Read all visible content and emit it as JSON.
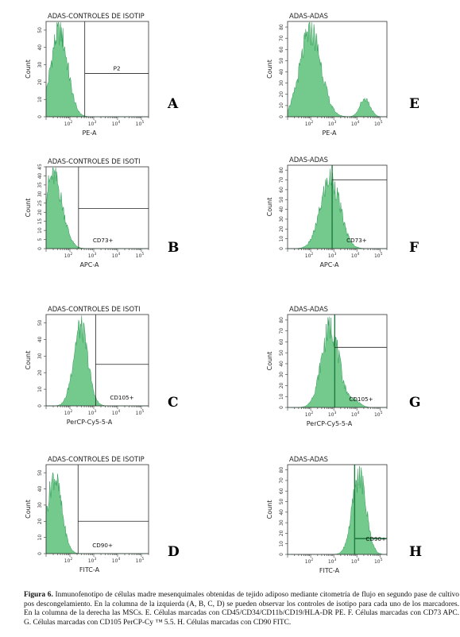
{
  "chart_data": [
    {
      "id": "A",
      "type": "area",
      "letter": "A",
      "title": "ADAS-CONTROLES DE ISOTIP",
      "xlabel": "PE-A",
      "ylabel": "Count",
      "xscale": "log",
      "xlim": [
        10,
        200000
      ],
      "ylim": [
        0,
        55
      ],
      "yticks": [
        0,
        10,
        20,
        30,
        40,
        50
      ],
      "gate": {
        "label": "P2",
        "x_from": 420,
        "level": 25
      },
      "series": [
        {
          "peak_log10": 1.55,
          "sigma": 0.35,
          "height": 52
        }
      ]
    },
    {
      "id": "B",
      "type": "area",
      "letter": "B",
      "title": "ADAS-CONTROLES DE ISOTI",
      "xlabel": "APC-A",
      "ylabel": "Count",
      "xscale": "log",
      "xlim": [
        10,
        200000
      ],
      "ylim": [
        0,
        45
      ],
      "yticks": [
        0,
        5,
        10,
        15,
        20,
        25,
        30,
        35,
        40,
        45
      ],
      "gate": {
        "label": "CD73+",
        "x_from": 230,
        "level": 22
      },
      "series": [
        {
          "peak_log10": 1.3,
          "sigma": 0.38,
          "height": 42
        }
      ]
    },
    {
      "id": "C",
      "type": "area",
      "letter": "C",
      "title": "ADAS-CONTROLES DE ISOTI",
      "xlabel": "PerCP-Cy5-5-A",
      "ylabel": "Count",
      "xscale": "log",
      "xlim": [
        10,
        200000
      ],
      "ylim": [
        0,
        55
      ],
      "yticks": [
        0,
        10,
        20,
        30,
        40,
        50
      ],
      "gate": {
        "label": "CD105+",
        "x_from": 1200,
        "level": 25
      },
      "series": [
        {
          "peak_log10": 2.45,
          "sigma": 0.3,
          "height": 50
        }
      ]
    },
    {
      "id": "D",
      "type": "area",
      "letter": "D",
      "title": "ADAS-CONTROLES DE ISOTIP",
      "xlabel": "FITC-A",
      "ylabel": "Count",
      "xscale": "log",
      "xlim": [
        10,
        200000
      ],
      "ylim": [
        0,
        55
      ],
      "yticks": [
        0,
        10,
        20,
        30,
        40,
        50
      ],
      "gate": {
        "label": "CD90+",
        "x_from": 220,
        "level": 20
      },
      "series": [
        {
          "peak_log10": 1.35,
          "sigma": 0.3,
          "height": 50
        }
      ]
    },
    {
      "id": "E",
      "type": "area",
      "letter": "E",
      "title": "ADAS-ADAS",
      "xlabel": "PE-A",
      "ylabel": "Count",
      "xscale": "log",
      "xlim": [
        10,
        200000
      ],
      "ylim": [
        0,
        85
      ],
      "yticks": [
        0,
        10,
        20,
        30,
        40,
        50,
        60,
        70,
        80
      ],
      "gate": null,
      "series": [
        {
          "peak_log10": 2.0,
          "sigma": 0.45,
          "height": 80
        },
        {
          "peak_log10": 4.35,
          "sigma": 0.22,
          "height": 17
        }
      ]
    },
    {
      "id": "F",
      "type": "area",
      "letter": "F",
      "title": "ADAS-ADAS",
      "xlabel": "APC-A",
      "ylabel": "Count",
      "xscale": "log",
      "xlim": [
        10,
        200000
      ],
      "ylim": [
        0,
        85
      ],
      "yticks": [
        0,
        10,
        20,
        30,
        40,
        50,
        60,
        70,
        80
      ],
      "gate": {
        "label": "CD73+",
        "x_from": 850,
        "level": 70
      },
      "series": [
        {
          "peak_log10": 2.85,
          "sigma": 0.42,
          "height": 75
        }
      ]
    },
    {
      "id": "G",
      "type": "area",
      "letter": "G",
      "title": "ADAS-ADAS",
      "xlabel": "PerCP-Cy5-5-A",
      "ylabel": "Count",
      "xscale": "log",
      "xlim": [
        10,
        200000
      ],
      "ylim": [
        0,
        85
      ],
      "yticks": [
        0,
        10,
        20,
        30,
        40,
        50,
        60,
        70,
        80
      ],
      "gate": {
        "label": "CD105+",
        "x_from": 1100,
        "level": 55
      },
      "series": [
        {
          "peak_log10": 2.85,
          "sigma": 0.38,
          "height": 77
        },
        {
          "peak_log10": 3.9,
          "sigma": 0.25,
          "height": 6
        }
      ]
    },
    {
      "id": "H",
      "type": "area",
      "letter": "H",
      "title": "ADAS-ADAS",
      "xlabel": "FITC-A",
      "ylabel": "Count",
      "xscale": "log",
      "xlim": [
        10,
        200000
      ],
      "ylim": [
        0,
        85
      ],
      "yticks": [
        0,
        10,
        20,
        30,
        40,
        50,
        60,
        70,
        80
      ],
      "gate": {
        "label": "CD90+",
        "x_from": 8000,
        "level": 15
      },
      "series": [
        {
          "peak_log10": 4.1,
          "sigma": 0.3,
          "height": 78
        }
      ]
    }
  ],
  "colors": {
    "fill": "#74c98c",
    "stroke": "#2f9a57",
    "axis": "#333333",
    "gate": "#222222",
    "gate_thick": "#1e7a3e"
  },
  "caption": {
    "label": "Figura 6.",
    "text": " Inmunofenotipo de células madre mesenquimales obtenidas de tejido adiposo mediante citometría de flujo en segundo pase de cultivo pos descongelamiento. En la columna de la izquierda (A, B, C, D) se pueden observar los controles de isotipo para cada uno de los marcadores. En la columna de la derecha las MSCs. E. Células marcadas con CD45/CD34/CD11b/CD19/HLA-DR PE. F. Células marcadas con CD73 APC. G. Células marcadas con CD105 PerCP-Cy ™ 5.5. H. Células marcadas con CD90 FITC."
  }
}
